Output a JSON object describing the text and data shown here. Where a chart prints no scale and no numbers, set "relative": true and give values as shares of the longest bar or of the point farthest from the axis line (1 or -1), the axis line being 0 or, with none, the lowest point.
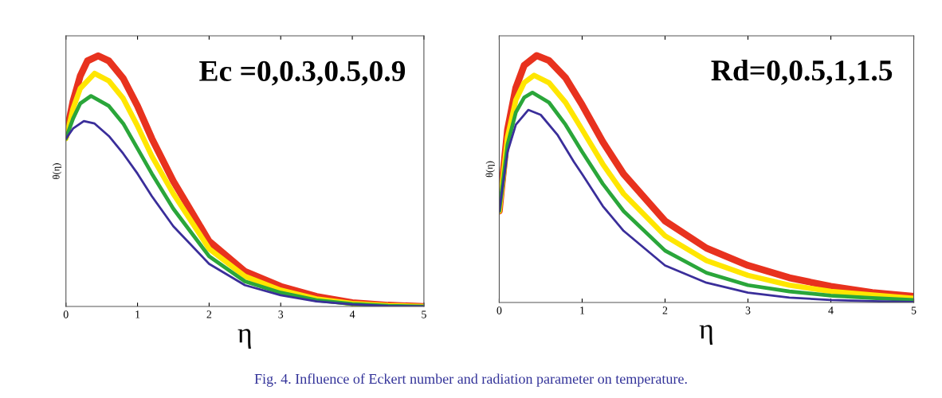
{
  "chart_data": [
    {
      "type": "line",
      "relative": true,
      "xlabel": "η",
      "ylabel": "θ(η)",
      "xlim": [
        0,
        5
      ],
      "xticks": [
        0,
        1,
        2,
        3,
        4,
        5
      ],
      "annotations": [
        "Ec =0,0.3,0.5,0.9"
      ],
      "series": [
        {
          "color": "#e8321e",
          "x": [
            0,
            0.1,
            0.2,
            0.3,
            0.45,
            0.6,
            0.8,
            1.0,
            1.2,
            1.5,
            2.0,
            2.5,
            3.0,
            3.5,
            4.0,
            4.5,
            5.0
          ],
          "values": [
            0.68,
            0.82,
            0.92,
            0.98,
            1.0,
            0.98,
            0.91,
            0.8,
            0.67,
            0.5,
            0.26,
            0.14,
            0.08,
            0.04,
            0.015,
            0.005,
            0
          ]
        },
        {
          "color": "#ffe600",
          "x": [
            0,
            0.1,
            0.2,
            0.4,
            0.6,
            0.8,
            1.0,
            1.2,
            1.5,
            2.0,
            2.5,
            3.0,
            3.5,
            4.0,
            4.5,
            5.0
          ],
          "values": [
            0.67,
            0.79,
            0.87,
            0.93,
            0.9,
            0.83,
            0.72,
            0.6,
            0.45,
            0.23,
            0.12,
            0.065,
            0.03,
            0.012,
            0.004,
            0
          ]
        },
        {
          "color": "#2aa63a",
          "x": [
            0,
            0.1,
            0.2,
            0.35,
            0.6,
            0.8,
            1.0,
            1.2,
            1.5,
            2.0,
            2.5,
            3.0,
            3.5,
            4.0,
            4.5,
            5.0
          ],
          "values": [
            0.67,
            0.75,
            0.81,
            0.84,
            0.8,
            0.73,
            0.63,
            0.53,
            0.39,
            0.2,
            0.1,
            0.055,
            0.025,
            0.01,
            0.003,
            0
          ]
        },
        {
          "color": "#3a2e9a",
          "x": [
            0,
            0.1,
            0.25,
            0.4,
            0.6,
            0.8,
            1.0,
            1.2,
            1.5,
            2.0,
            2.5,
            3.0,
            3.5,
            4.0,
            4.5,
            5.0
          ],
          "values": [
            0.67,
            0.71,
            0.74,
            0.73,
            0.68,
            0.61,
            0.53,
            0.44,
            0.32,
            0.17,
            0.085,
            0.045,
            0.02,
            0.008,
            0.002,
            0
          ]
        }
      ]
    },
    {
      "type": "line",
      "relative": true,
      "xlabel": "η",
      "ylabel": "θ(η)",
      "xlim": [
        0,
        5
      ],
      "xticks": [
        0,
        1,
        2,
        3,
        4,
        5
      ],
      "annotations": [
        "Rd=0,0.5,1,1.5",
        "Fig. 4. Influence of Eckert number and radiation parameter on temperature."
      ],
      "series": [
        {
          "color": "#e8321e",
          "x": [
            0,
            0.1,
            0.2,
            0.3,
            0.45,
            0.6,
            0.8,
            1.0,
            1.25,
            1.5,
            2.0,
            2.5,
            3.0,
            3.5,
            4.0,
            4.5,
            5.0
          ],
          "values": [
            0.37,
            0.7,
            0.87,
            0.96,
            1.0,
            0.98,
            0.91,
            0.8,
            0.65,
            0.52,
            0.33,
            0.22,
            0.15,
            0.1,
            0.065,
            0.04,
            0.025
          ]
        },
        {
          "color": "#ffe600",
          "x": [
            0,
            0.1,
            0.2,
            0.3,
            0.42,
            0.6,
            0.8,
            1.0,
            1.25,
            1.5,
            2.0,
            2.5,
            3.0,
            3.5,
            4.0,
            4.5,
            5.0
          ],
          "values": [
            0.37,
            0.67,
            0.82,
            0.89,
            0.92,
            0.89,
            0.81,
            0.7,
            0.56,
            0.44,
            0.27,
            0.17,
            0.11,
            0.07,
            0.045,
            0.03,
            0.017
          ]
        },
        {
          "color": "#2aa63a",
          "x": [
            0,
            0.1,
            0.2,
            0.3,
            0.4,
            0.6,
            0.8,
            1.0,
            1.25,
            1.5,
            2.0,
            2.5,
            3.0,
            3.5,
            4.0,
            4.5,
            5.0
          ],
          "values": [
            0.37,
            0.64,
            0.77,
            0.83,
            0.85,
            0.81,
            0.72,
            0.61,
            0.48,
            0.37,
            0.21,
            0.12,
            0.07,
            0.045,
            0.028,
            0.018,
            0.01
          ]
        },
        {
          "color": "#3a2e9a",
          "x": [
            0,
            0.1,
            0.2,
            0.35,
            0.5,
            0.7,
            0.9,
            1.0,
            1.25,
            1.5,
            2.0,
            2.5,
            3.0,
            3.5,
            4.0,
            4.5,
            5.0
          ],
          "values": [
            0.37,
            0.61,
            0.72,
            0.78,
            0.76,
            0.68,
            0.57,
            0.52,
            0.39,
            0.29,
            0.15,
            0.08,
            0.04,
            0.02,
            0.01,
            0.005,
            0.002
          ]
        }
      ]
    }
  ]
}
